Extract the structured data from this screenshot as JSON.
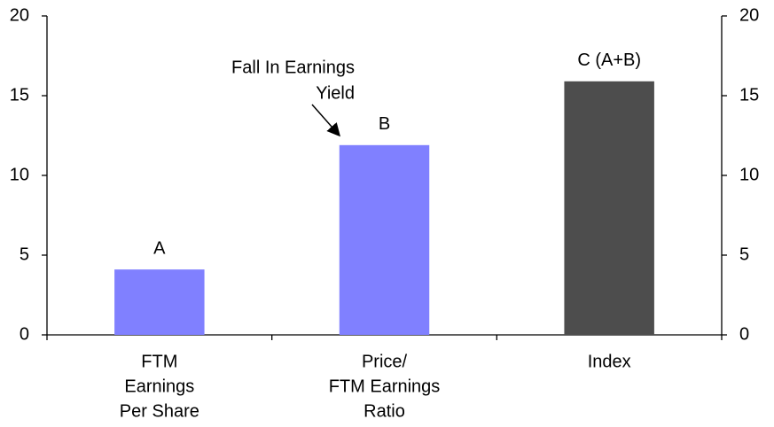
{
  "chart_data": {
    "type": "bar",
    "categories": [
      [
        "FTM",
        "Earnings",
        "Per Share"
      ],
      [
        "Price/",
        "FTM Earnings",
        "Ratio"
      ],
      [
        "Index"
      ]
    ],
    "values": [
      4.1,
      11.9,
      15.9
    ],
    "colors": [
      "#8080ff",
      "#8080ff",
      "#4d4d4d"
    ],
    "bar_labels": [
      "A",
      "B",
      "C (A+B)"
    ],
    "annotation": [
      "Fall In Earnings",
      "Yield"
    ],
    "ylim": [
      0,
      20
    ],
    "yticks": [
      0,
      5,
      10,
      15,
      20
    ],
    "y2lim": [
      0,
      20
    ],
    "y2ticks": [
      0,
      5,
      10,
      15,
      20
    ]
  }
}
